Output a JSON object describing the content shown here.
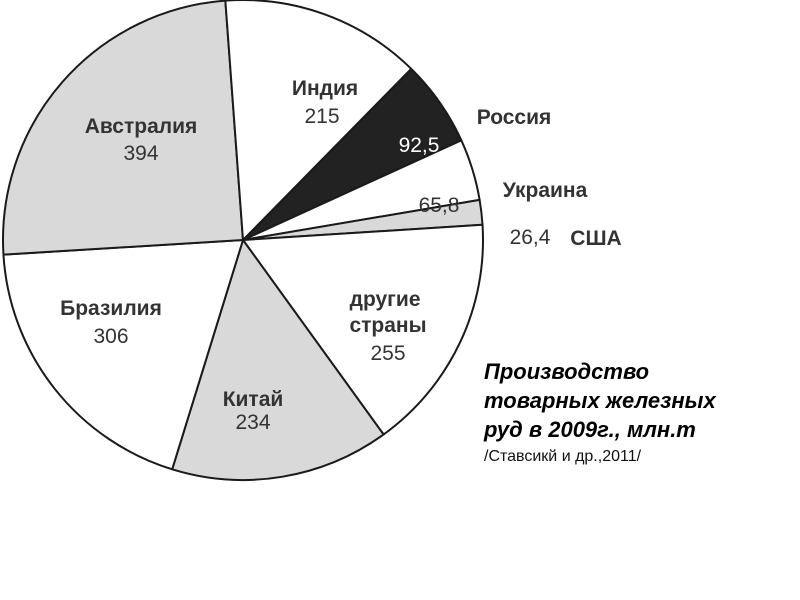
{
  "chart_data": {
    "type": "pie",
    "start_angle_deg": -45.5,
    "direction": "clockwise",
    "slices": [
      {
        "name": "Россия",
        "value": 92.5,
        "value_label": "92,5",
        "color": "#222222"
      },
      {
        "name": "Украина",
        "value": 65.8,
        "value_label": "65,8",
        "color": "#ffffff"
      },
      {
        "name": "США",
        "value": 26.4,
        "value_label": "26,4",
        "color": "#d9d9d9"
      },
      {
        "name": "другие страны",
        "value": 255,
        "value_label": "255",
        "color": "#ffffff"
      },
      {
        "name": "Китай",
        "value": 234,
        "value_label": "234",
        "color": "#d9d9d9"
      },
      {
        "name": "Бразилия",
        "value": 306,
        "value_label": "306",
        "color": "#ffffff"
      },
      {
        "name": "Австралия",
        "value": 394,
        "value_label": "394",
        "color": "#d9d9d9"
      },
      {
        "name": "Индия",
        "value": 215,
        "value_label": "215",
        "color": "#ffffff"
      }
    ]
  },
  "caption": {
    "title_lines": [
      "Производство",
      "товарных железных",
      "руд в 2009г., млн.т"
    ],
    "source": "/Ставсикй и др.,2011/"
  }
}
